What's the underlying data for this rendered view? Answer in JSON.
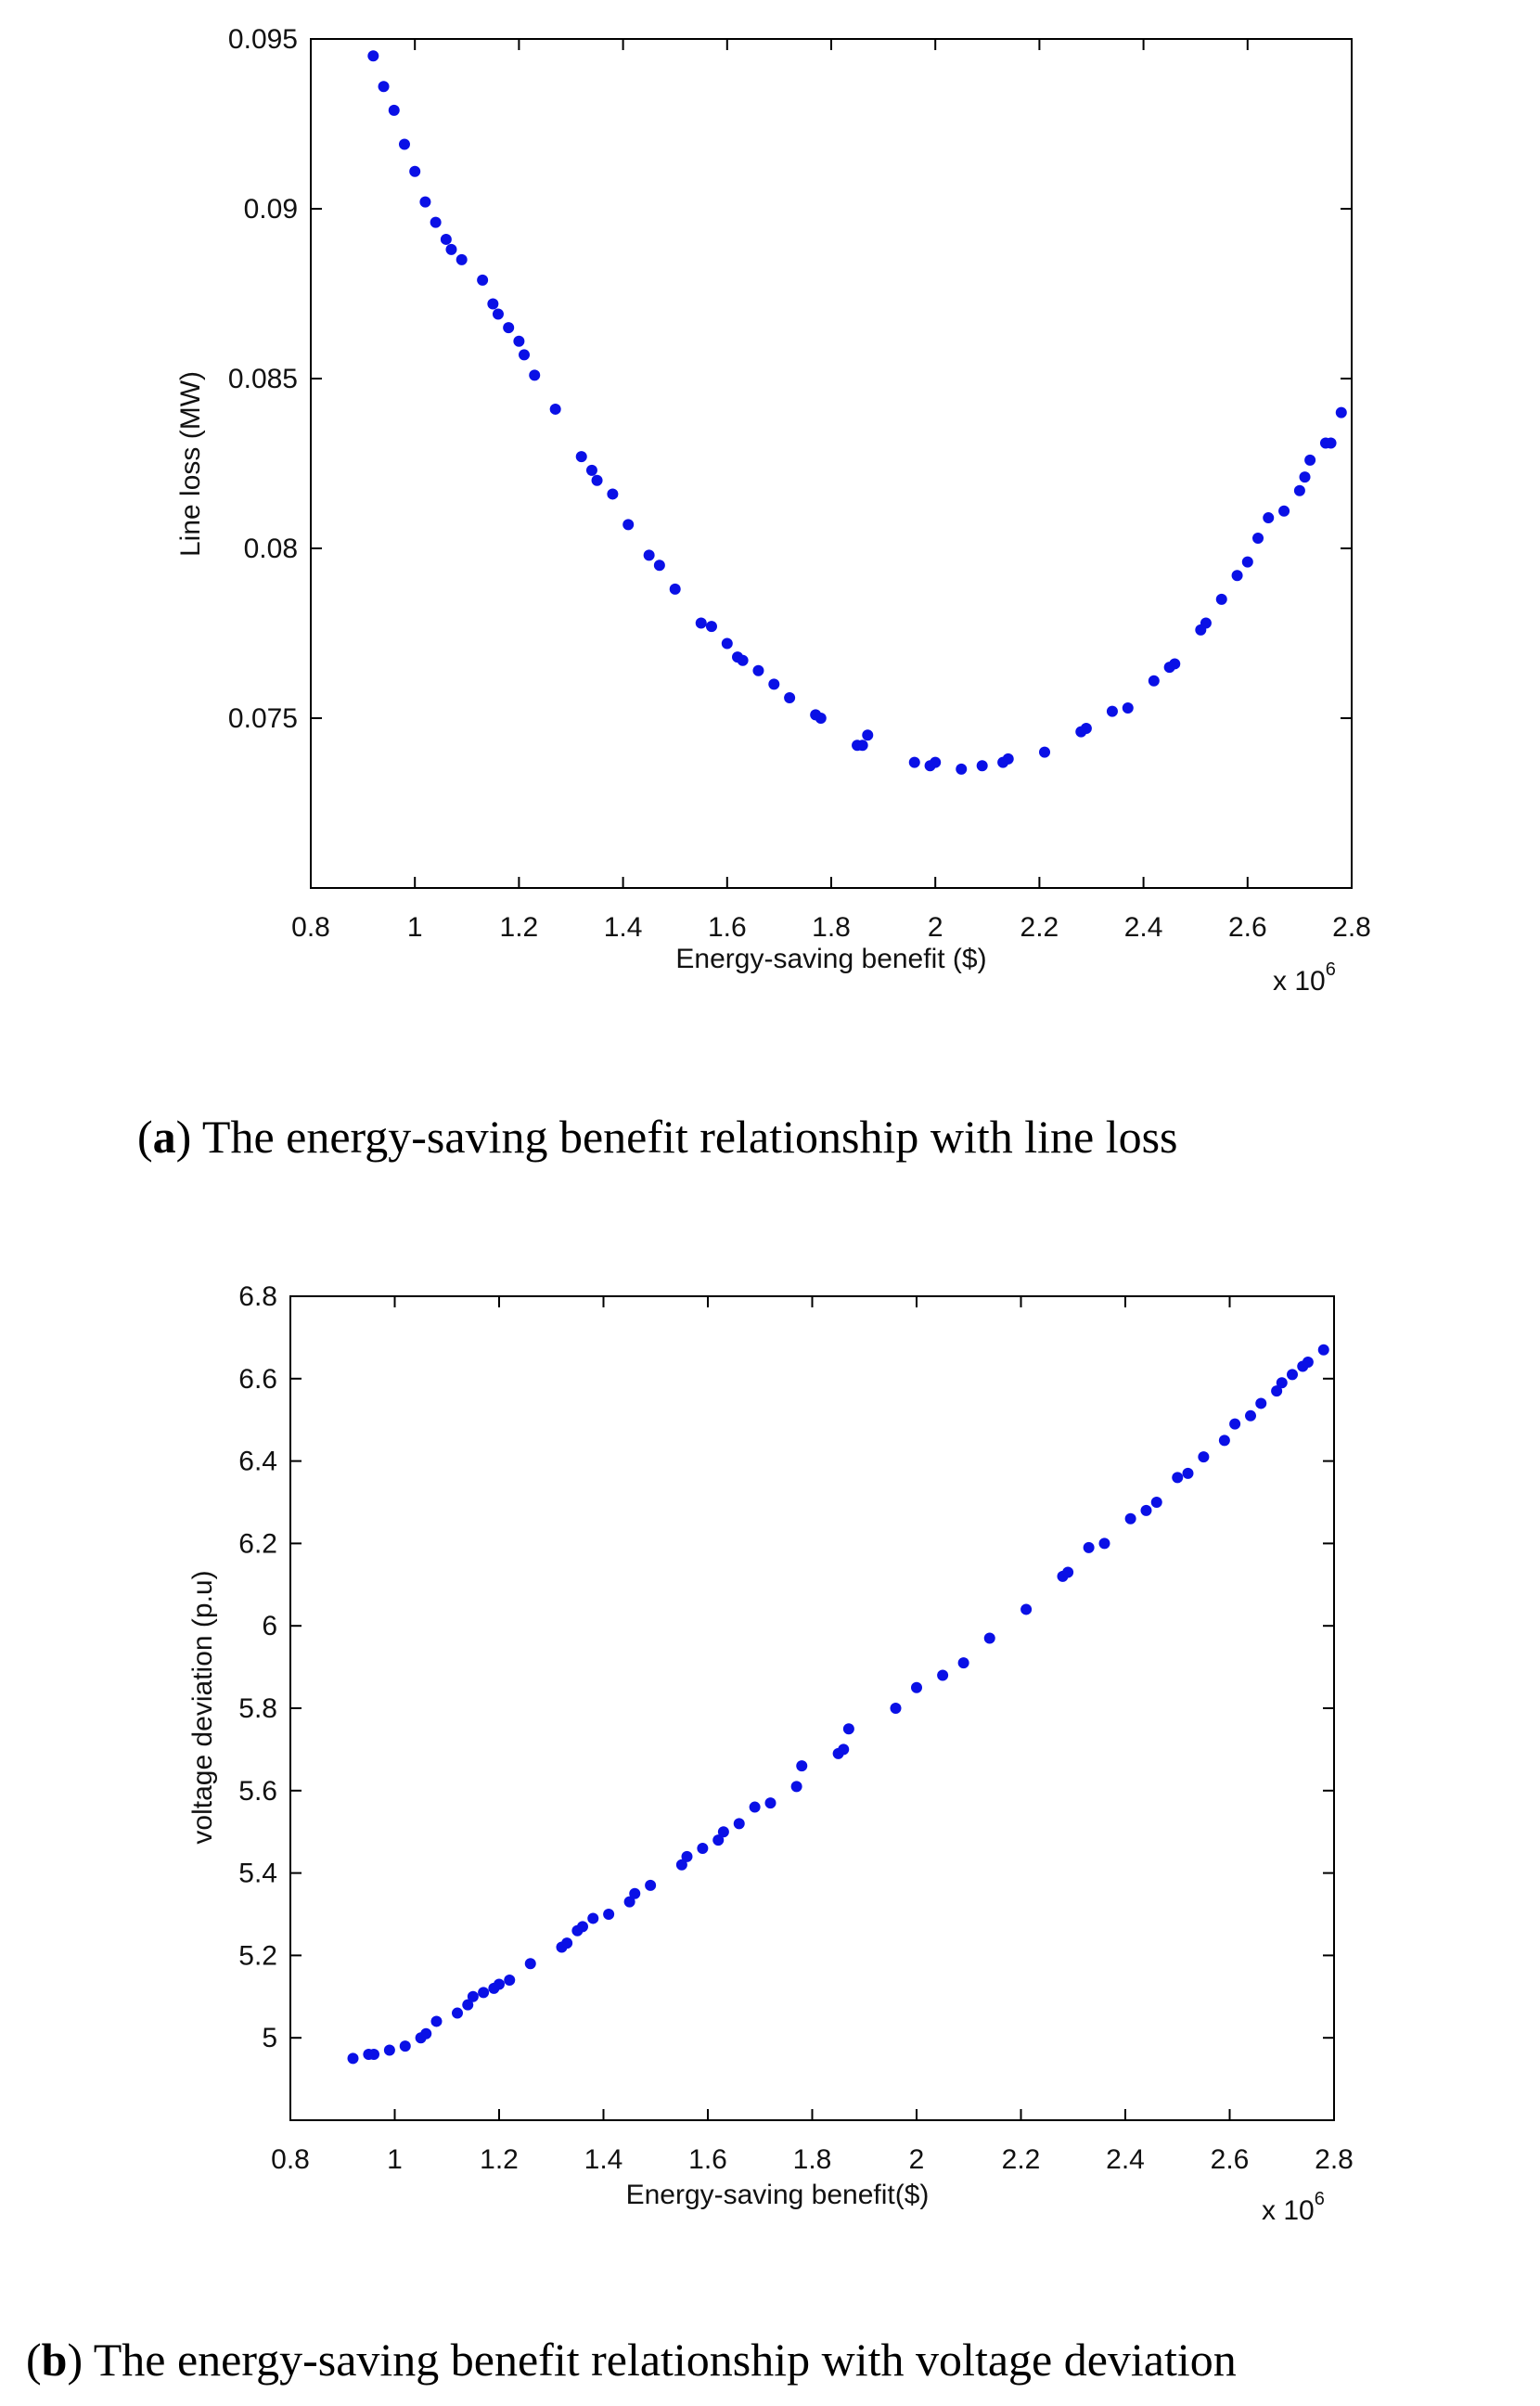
{
  "chart_data": [
    {
      "type": "scatter",
      "title": "",
      "xlabel": "Energy-saving benefit ($)",
      "ylabel": "Line loss (MW)",
      "x_multiplier_label": "x 10",
      "x_multiplier_exponent": "6",
      "xlim": [
        0.8,
        2.8
      ],
      "ylim": [
        0.07,
        0.095
      ],
      "xticks": [
        0.8,
        1,
        1.2,
        1.4,
        1.6,
        1.8,
        2,
        2.2,
        2.4,
        2.6,
        2.8
      ],
      "xtick_labels": [
        "0.8",
        "1",
        "1.2",
        "1.4",
        "1.6",
        "1.8",
        "2",
        "2.2",
        "2.4",
        "2.6",
        "2.8"
      ],
      "yticks": [
        0.075,
        0.08,
        0.085,
        0.09,
        0.095
      ],
      "ytick_labels": [
        "0.075",
        "0.08",
        "0.085",
        "0.09",
        "0.095"
      ],
      "grid": false,
      "marker_color": "#0a10e6",
      "caption_label": "(a)",
      "caption_label_letter": "a",
      "caption_text": "The energy-saving benefit relationship with line loss",
      "x": [
        0.92,
        0.94,
        0.96,
        0.98,
        1.0,
        1.02,
        1.04,
        1.06,
        1.07,
        1.09,
        1.13,
        1.15,
        1.16,
        1.18,
        1.2,
        1.21,
        1.23,
        1.27,
        1.32,
        1.34,
        1.35,
        1.38,
        1.41,
        1.45,
        1.47,
        1.5,
        1.55,
        1.57,
        1.6,
        1.62,
        1.63,
        1.66,
        1.69,
        1.72,
        1.77,
        1.78,
        1.85,
        1.86,
        1.87,
        1.96,
        1.99,
        2.0,
        2.05,
        2.09,
        2.13,
        2.14,
        2.21,
        2.28,
        2.29,
        2.34,
        2.37,
        2.42,
        2.45,
        2.46,
        2.51,
        2.52,
        2.55,
        2.58,
        2.6,
        2.62,
        2.64,
        2.67,
        2.7,
        2.71,
        2.72,
        2.75,
        2.76,
        2.78
      ],
      "y": [
        0.0945,
        0.0936,
        0.0929,
        0.0919,
        0.0911,
        0.0902,
        0.0896,
        0.0891,
        0.0888,
        0.0885,
        0.0879,
        0.0872,
        0.0869,
        0.0865,
        0.0861,
        0.0857,
        0.0851,
        0.0841,
        0.0827,
        0.0823,
        0.082,
        0.0816,
        0.0807,
        0.0798,
        0.0795,
        0.0788,
        0.0778,
        0.0777,
        0.0772,
        0.0768,
        0.0767,
        0.0764,
        0.076,
        0.0756,
        0.0751,
        0.075,
        0.0742,
        0.0742,
        0.0745,
        0.0737,
        0.0736,
        0.0737,
        0.0735,
        0.0736,
        0.0737,
        0.0738,
        0.074,
        0.0746,
        0.0747,
        0.0752,
        0.0753,
        0.0761,
        0.0765,
        0.0766,
        0.0776,
        0.0778,
        0.0785,
        0.0792,
        0.0796,
        0.0803,
        0.0809,
        0.0811,
        0.0817,
        0.0821,
        0.0826,
        0.0831,
        0.0831,
        0.084
      ]
    },
    {
      "type": "scatter",
      "title": "",
      "xlabel": "Energy-saving benefit($)",
      "ylabel": "voltage deviation (p.u)",
      "x_multiplier_label": "x 10",
      "x_multiplier_exponent": "6",
      "xlim": [
        0.8,
        2.8
      ],
      "ylim": [
        4.8,
        6.8
      ],
      "xticks": [
        0.8,
        1,
        1.2,
        1.4,
        1.6,
        1.8,
        2,
        2.2,
        2.4,
        2.6,
        2.8
      ],
      "xtick_labels": [
        "0.8",
        "1",
        "1.2",
        "1.4",
        "1.6",
        "1.8",
        "2",
        "2.2",
        "2.4",
        "2.6",
        "2.8"
      ],
      "yticks": [
        5,
        5.2,
        5.4,
        5.6,
        5.8,
        6,
        6.2,
        6.4,
        6.6,
        6.8
      ],
      "ytick_labels": [
        "5",
        "5.2",
        "5.4",
        "5.6",
        "5.8",
        "6",
        "6.2",
        "6.4",
        "6.6",
        "6.8"
      ],
      "grid": false,
      "marker_color": "#0a10e6",
      "caption_label": "(b)",
      "caption_label_letter": "b",
      "caption_text": "The energy-saving benefit relationship with voltage deviation",
      "x": [
        0.92,
        0.95,
        0.96,
        0.99,
        1.02,
        1.05,
        1.06,
        1.08,
        1.12,
        1.14,
        1.15,
        1.17,
        1.19,
        1.2,
        1.22,
        1.26,
        1.32,
        1.33,
        1.35,
        1.36,
        1.38,
        1.41,
        1.45,
        1.46,
        1.49,
        1.55,
        1.56,
        1.59,
        1.62,
        1.63,
        1.66,
        1.69,
        1.72,
        1.77,
        1.78,
        1.85,
        1.86,
        1.87,
        1.96,
        2.0,
        2.05,
        2.09,
        2.14,
        2.21,
        2.28,
        2.29,
        2.33,
        2.36,
        2.41,
        2.44,
        2.46,
        2.5,
        2.52,
        2.55,
        2.59,
        2.61,
        2.64,
        2.66,
        2.69,
        2.7,
        2.72,
        2.74,
        2.75,
        2.78
      ],
      "y": [
        4.95,
        4.96,
        4.96,
        4.97,
        4.98,
        5.0,
        5.01,
        5.04,
        5.06,
        5.08,
        5.1,
        5.11,
        5.12,
        5.13,
        5.14,
        5.18,
        5.22,
        5.23,
        5.26,
        5.27,
        5.29,
        5.3,
        5.33,
        5.35,
        5.37,
        5.42,
        5.44,
        5.46,
        5.48,
        5.5,
        5.52,
        5.56,
        5.57,
        5.61,
        5.66,
        5.69,
        5.7,
        5.75,
        5.8,
        5.85,
        5.88,
        5.91,
        5.97,
        6.04,
        6.12,
        6.13,
        6.19,
        6.2,
        6.26,
        6.28,
        6.3,
        6.36,
        6.37,
        6.41,
        6.45,
        6.49,
        6.51,
        6.54,
        6.57,
        6.59,
        6.61,
        6.63,
        6.64,
        6.67
      ]
    }
  ]
}
